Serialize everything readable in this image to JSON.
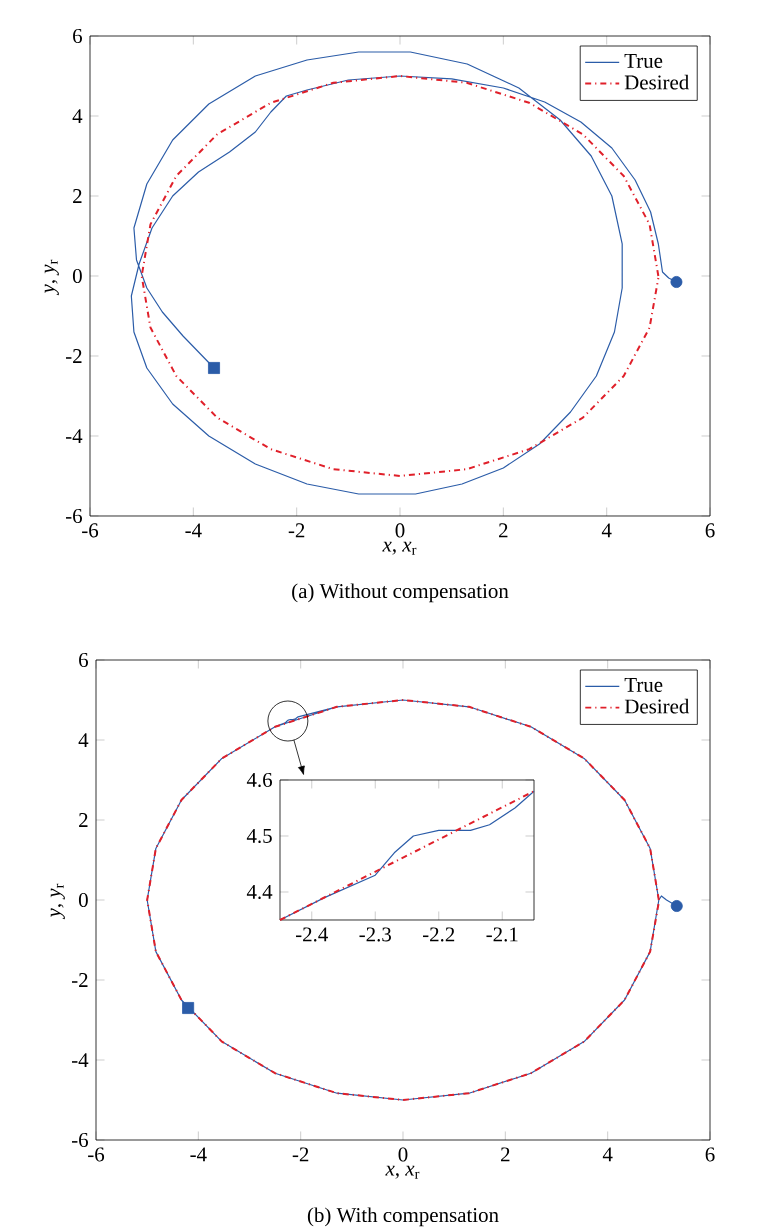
{
  "chart_data": [
    {
      "type": "line",
      "xlabel": "*x*, *x*$_{r}$",
      "ylabel": "*y*, *y*$_{r}$",
      "annotations": [
        "(a) Without compensation"
      ],
      "xlim": [
        -6,
        6
      ],
      "ylim": [
        -6,
        6
      ],
      "xticks": [
        -6,
        -4,
        -2,
        0,
        2,
        4,
        6
      ],
      "yticks": [
        -6,
        -4,
        -2,
        0,
        2,
        4,
        6
      ],
      "legend": "top right",
      "series": [
        {
          "name": "True",
          "color": "#2b5ca8",
          "line_style": "solid",
          "marker": "none",
          "x": [
            5.35,
            5.2,
            5.08,
            5.0,
            4.85,
            4.55,
            4.1,
            3.5,
            2.8,
            2,
            1,
            0,
            -1,
            -1.8,
            -2.2,
            -2.5,
            -2.8,
            -3.3,
            -3.9,
            -4.4,
            -4.8,
            -5.05,
            -5.2,
            -5.15,
            -4.9,
            -4.4,
            -3.7,
            -2.8,
            -1.8,
            -0.8,
            0.3,
            1.2,
            2,
            2.7,
            3.3,
            3.8,
            4.15,
            4.3,
            4.3,
            4.1,
            3.7,
            3.1,
            2.3,
            1.3,
            0.2,
            -0.8,
            -1.8,
            -2.8,
            -3.7,
            -4.4,
            -4.9,
            -5.15,
            -5.1,
            -4.9,
            -4.6,
            -4.2,
            -3.6
          ],
          "values": [
            -0.15,
            -0.05,
            0.1,
            0.8,
            1.6,
            2.4,
            3.2,
            3.85,
            4.35,
            4.7,
            4.93,
            5.0,
            4.9,
            4.65,
            4.5,
            4.1,
            3.6,
            3.1,
            2.6,
            2.0,
            1.2,
            0.3,
            -0.5,
            -1.4,
            -2.3,
            -3.2,
            -4.0,
            -4.7,
            -5.2,
            -5.45,
            -5.45,
            -5.2,
            -4.8,
            -4.2,
            -3.4,
            -2.5,
            -1.4,
            -0.3,
            0.8,
            2,
            3.0,
            3.9,
            4.7,
            5.3,
            5.6,
            5.6,
            5.4,
            5.0,
            4.3,
            3.4,
            2.3,
            1.2,
            0.4,
            -0.3,
            -0.9,
            -1.5,
            -2.3
          ]
        },
        {
          "name": "Desired",
          "color": "#e0202a",
          "line_style": "dashed",
          "marker": "none",
          "x": [
            5,
            4.83,
            4.33,
            3.54,
            2.5,
            1.29,
            0,
            -1.29,
            -2.5,
            -3.54,
            -4.33,
            -4.83,
            -5,
            -4.83,
            -4.33,
            -3.54,
            -2.5,
            -1.29,
            0,
            1.29,
            2.5,
            3.54,
            4.33,
            4.83,
            5
          ],
          "values": [
            0,
            1.29,
            2.5,
            3.54,
            4.33,
            4.83,
            5,
            4.83,
            4.33,
            3.54,
            2.5,
            1.29,
            0,
            -1.29,
            -2.5,
            -3.54,
            -4.33,
            -4.83,
            -5,
            -4.83,
            -4.33,
            -3.54,
            -2.5,
            -1.29,
            -0.05
          ]
        },
        {
          "type": "scatter",
          "color": "#2b5ca8",
          "marker": "circle",
          "x": [
            5.35
          ],
          "values": [
            -0.15
          ]
        },
        {
          "type": "scatter",
          "color": "#2b5ca8",
          "marker": "square",
          "x": [
            -3.6
          ],
          "values": [
            -2.3
          ]
        }
      ]
    },
    {
      "type": "line",
      "xlabel": "*x*, *x*$_{r}$",
      "ylabel": "*y*, *y*$_{r}$",
      "annotations": [
        "(b) With compensation"
      ],
      "xlim": [
        -6,
        6
      ],
      "ylim": [
        -6,
        6
      ],
      "xticks": [
        -6,
        -4,
        -2,
        0,
        2,
        4,
        6
      ],
      "yticks": [
        -6,
        -4,
        -2,
        0,
        2,
        4,
        6
      ],
      "legend": "top right",
      "series": [
        {
          "name": "True",
          "color": "#2b5ca8",
          "line_style": "solid",
          "marker": "none",
          "x": [
            5.35,
            5.15,
            5.05,
            5,
            4.83,
            4.33,
            3.54,
            2.5,
            1.29,
            0,
            -1.29,
            -2.05,
            -2.1,
            -2.15,
            -2.2,
            -2.24,
            -2.27,
            -2.3,
            -2.38,
            -2.5,
            -3.54,
            -4.33,
            -4.83,
            -5,
            -4.83,
            -4.33,
            -3.54,
            -2.5,
            -1.29,
            0,
            1.29,
            2.5,
            3.54,
            4.33,
            4.83,
            5,
            4.83,
            4.33,
            3.54,
            2.5,
            1.29,
            0,
            -1.29,
            -2.5,
            -3.54,
            -4.33,
            -4.83,
            -5,
            -4.83,
            -4.33,
            -4.2
          ],
          "values": [
            -0.15,
            0,
            0.1,
            0,
            1.29,
            2.5,
            3.54,
            4.33,
            4.83,
            5,
            4.83,
            4.58,
            4.53,
            4.51,
            4.51,
            4.5,
            4.47,
            4.43,
            4.39,
            4.33,
            3.54,
            2.5,
            1.29,
            0,
            -1.29,
            -2.5,
            -3.54,
            -4.33,
            -4.83,
            -5,
            -4.83,
            -4.33,
            -3.54,
            -2.5,
            -1.29,
            0,
            1.29,
            2.5,
            3.54,
            4.33,
            4.83,
            5,
            4.83,
            4.33,
            3.54,
            2.5,
            1.29,
            0,
            -1.29,
            -2.5,
            -2.7
          ]
        },
        {
          "name": "Desired",
          "color": "#e0202a",
          "line_style": "dashed",
          "marker": "none",
          "x": [
            5,
            4.83,
            4.33,
            3.54,
            2.5,
            1.29,
            0,
            -1.29,
            -2.5,
            -3.54,
            -4.33,
            -4.83,
            -5,
            -4.83,
            -4.33,
            -3.54,
            -2.5,
            -1.29,
            0,
            1.29,
            2.5,
            3.54,
            4.33,
            4.83,
            5
          ],
          "values": [
            0,
            1.29,
            2.5,
            3.54,
            4.33,
            4.83,
            5,
            4.83,
            4.33,
            3.54,
            2.5,
            1.29,
            0,
            -1.29,
            -2.5,
            -3.54,
            -4.33,
            -4.83,
            -5,
            -4.83,
            -4.33,
            -3.54,
            -2.5,
            -1.29,
            -0.05
          ]
        },
        {
          "type": "scatter",
          "color": "#2b5ca8",
          "marker": "circle",
          "x": [
            5.35
          ],
          "values": [
            -0.15
          ]
        },
        {
          "type": "scatter",
          "color": "#2b5ca8",
          "marker": "square",
          "x": [
            -4.2
          ],
          "values": [
            -2.7
          ]
        }
      ]
    },
    {
      "type": "line",
      "xlim": [
        -2.45,
        -2.05
      ],
      "ylim": [
        4.35,
        4.6
      ],
      "xticks": [
        -2.4,
        -2.3,
        -2.2,
        -2.1
      ],
      "yticks": [
        4.4,
        4.5,
        4.6
      ],
      "series": [
        {
          "color": "#2b5ca8",
          "line_style": "solid",
          "marker": "none",
          "x": [
            -2.45,
            -2.38,
            -2.3,
            -2.27,
            -2.24,
            -2.2,
            -2.15,
            -2.12,
            -2.08,
            -2.05
          ],
          "values": [
            4.35,
            4.39,
            4.43,
            4.47,
            4.5,
            4.51,
            4.51,
            4.52,
            4.55,
            4.58
          ]
        },
        {
          "color": "#e0202a",
          "line_style": "dashed",
          "marker": "none",
          "x": [
            -2.45,
            -2.05
          ],
          "values": [
            4.35,
            4.58
          ]
        }
      ]
    }
  ]
}
